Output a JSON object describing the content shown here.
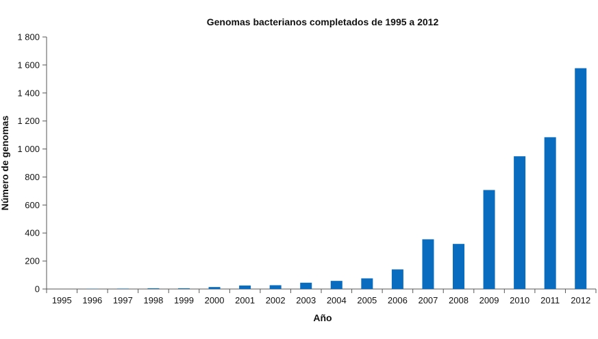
{
  "chart_data": {
    "type": "bar",
    "title": "Genomas bacterianos completados de 1995 a 2012",
    "xlabel": "Año",
    "ylabel": "Número de genomas",
    "categories": [
      "1995",
      "1996",
      "1997",
      "1998",
      "1999",
      "2000",
      "2001",
      "2002",
      "2003",
      "2004",
      "2005",
      "2006",
      "2007",
      "2008",
      "2009",
      "2010",
      "2011",
      "2012"
    ],
    "values": [
      0,
      2,
      3,
      5,
      5,
      14,
      25,
      27,
      45,
      58,
      76,
      140,
      355,
      322,
      707,
      948,
      1084,
      1577
    ],
    "ylim": [
      0,
      1800
    ],
    "yticks": [
      0,
      200,
      400,
      600,
      800,
      1000,
      1200,
      1400,
      1600,
      1800
    ],
    "ytick_labels": [
      "0",
      "200",
      "400",
      "600",
      "800",
      "1 000",
      "1 200",
      "1 400",
      "1 600",
      "1 800"
    ],
    "bar_color": "#0a6cbf",
    "grid": false,
    "legend": "none"
  }
}
